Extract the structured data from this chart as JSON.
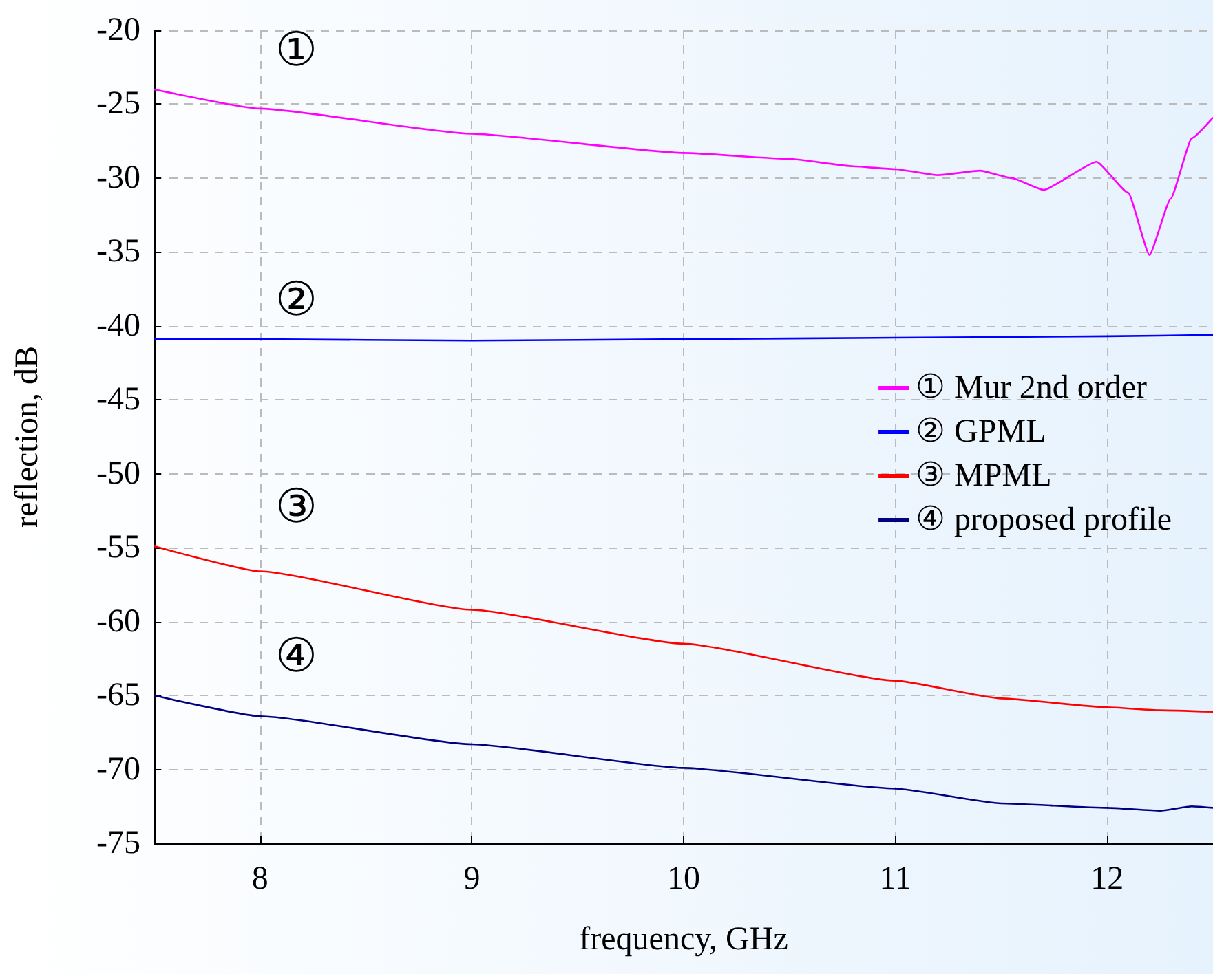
{
  "chart_data": {
    "type": "line",
    "xlabel": "frequency, GHz",
    "ylabel": "reflection, dB",
    "xlim": [
      7.5,
      12.5
    ],
    "xticks": [
      8,
      9,
      10,
      11,
      12
    ],
    "ylim": [
      -75,
      -20
    ],
    "yticks": [
      -75,
      -70,
      -65,
      -60,
      -55,
      -50,
      -45,
      -40,
      -35,
      -30,
      -25,
      -20
    ],
    "grid": true,
    "legend": "right",
    "marker": "none",
    "line_style": "solid",
    "series": [
      {
        "name": "① Mur 2nd order",
        "color": "#ff00ff",
        "x": [
          7.5,
          8,
          9,
          10,
          10.5,
          10.8,
          11,
          11.2,
          11.4,
          11.55,
          11.7,
          11.95,
          12.1,
          12.2,
          12.3,
          12.4,
          12.5
        ],
        "values": [
          -24.0,
          -25.3,
          -27.0,
          -28.3,
          -28.7,
          -29.2,
          -29.4,
          -29.8,
          -29.5,
          -30.0,
          -30.8,
          -28.9,
          -31.0,
          -35.2,
          -31.4,
          -27.3,
          -25.9
        ]
      },
      {
        "name": "② GPML",
        "color": "#0000ff",
        "x": [
          7.5,
          8,
          9,
          10,
          11,
          12,
          12.5
        ],
        "values": [
          -40.9,
          -40.9,
          -41.0,
          -40.9,
          -40.8,
          -40.7,
          -40.6
        ]
      },
      {
        "name": "③ MPML",
        "color": "#ff0000",
        "x": [
          7.5,
          8,
          9,
          10,
          11,
          11.5,
          12,
          12.25,
          12.5
        ],
        "values": [
          -54.9,
          -56.6,
          -59.2,
          -61.5,
          -64.0,
          -65.2,
          -65.8,
          -66.0,
          -66.1
        ]
      },
      {
        "name": "④ proposed profile",
        "color": "#000080",
        "x": [
          7.5,
          8,
          9,
          10,
          11,
          11.5,
          12,
          12.25,
          12.4,
          12.5
        ],
        "values": [
          -65.0,
          -66.4,
          -68.3,
          -69.9,
          -71.3,
          -72.3,
          -72.6,
          -72.8,
          -72.5,
          -72.6
        ]
      }
    ],
    "annotations": [
      "①",
      "②",
      "③",
      "④"
    ]
  }
}
